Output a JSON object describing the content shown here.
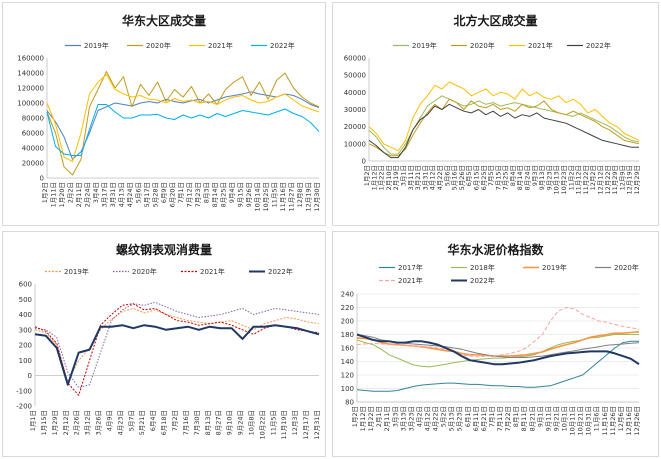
{
  "chart_data": [
    {
      "type": "line",
      "title": "华东大区成交量",
      "ylim": [
        0,
        160000
      ],
      "yticks": [
        0,
        20000,
        40000,
        60000,
        80000,
        100000,
        120000,
        140000,
        160000
      ],
      "x_labels": [
        "1月2日",
        "1月11日",
        "1月20日",
        "2月2日",
        "2月11日",
        "2月24日",
        "3月4日",
        "3月17日",
        "3月31日",
        "4月13日",
        "4月24日",
        "5月6日",
        "5月17日",
        "5月28日",
        "6月9日",
        "6月20日",
        "7月1日",
        "7月12日",
        "7月23日",
        "8月3日",
        "8月14日",
        "8月25日",
        "9月4日",
        "9月15日",
        "9月26日",
        "10月14日",
        "10月25日",
        "11月5日",
        "11月16日",
        "11月27日",
        "12月8日",
        "12月19日",
        "12月30日"
      ],
      "legend_position": "top",
      "grid": false,
      "series": [
        {
          "name": "2019年",
          "color": "#4f81bd",
          "values": [
            90000,
            75000,
            55000,
            25000,
            35000,
            60000,
            90000,
            95000,
            100000,
            98000,
            96000,
            100000,
            102000,
            100000,
            105000,
            102000,
            100000,
            103000,
            105000,
            100000,
            104000,
            108000,
            110000,
            112000,
            115000,
            112000,
            110000,
            108000,
            112000,
            110000,
            105000,
            98000,
            94000
          ]
        },
        {
          "name": "2020年",
          "color": "#c09a1c",
          "values": [
            88000,
            60000,
            15000,
            4000,
            25000,
            95000,
            118000,
            142000,
            120000,
            135000,
            95000,
            125000,
            110000,
            128000,
            102000,
            118000,
            108000,
            122000,
            100000,
            112000,
            98000,
            118000,
            128000,
            135000,
            110000,
            128000,
            105000,
            130000,
            140000,
            120000,
            108000,
            100000,
            95000
          ]
        },
        {
          "name": "2021年",
          "color": "#ffc000",
          "values": [
            100000,
            72000,
            28000,
            22000,
            60000,
            112000,
            128000,
            138000,
            118000,
            112000,
            108000,
            110000,
            105000,
            104000,
            100000,
            106000,
            102000,
            104000,
            100000,
            102000,
            98000,
            104000,
            108000,
            110000,
            104000,
            100000,
            102000,
            108000,
            112000,
            104000,
            96000,
            92000,
            88000
          ]
        },
        {
          "name": "2022年",
          "color": "#00b0f0",
          "values": [
            88000,
            42000,
            32000,
            30000,
            30000,
            65000,
            98000,
            98000,
            88000,
            80000,
            80000,
            84000,
            84000,
            85000,
            80000,
            78000,
            84000,
            80000,
            84000,
            80000,
            86000,
            82000,
            86000,
            90000,
            88000,
            86000,
            84000,
            88000,
            92000,
            86000,
            82000,
            74000,
            62000
          ]
        }
      ]
    },
    {
      "type": "line",
      "title": "北方大区成交量",
      "ylim": [
        0,
        60000
      ],
      "yticks": [
        0,
        10000,
        20000,
        30000,
        40000,
        50000,
        60000
      ],
      "x_labels": [
        "1月2日",
        "1月12日",
        "1月22日",
        "2月10日",
        "2月19日",
        "3月1日",
        "3月11日",
        "3月21日",
        "3月31日",
        "4月12日",
        "4月22日",
        "5月6日",
        "5月16日",
        "5月26日",
        "6月5日",
        "6月15日",
        "6月25日",
        "7月5日",
        "7月15日",
        "7月25日",
        "8月4日",
        "8月14日",
        "8月24日",
        "9月3日",
        "9月13日",
        "9月23日",
        "10月13日",
        "10月23日",
        "11月2日",
        "11月12日",
        "11月22日",
        "12月2日",
        "12月12日",
        "12月22日",
        "11月29日",
        "12月9日",
        "12月19日",
        "12月29日"
      ],
      "legend_position": "top",
      "grid": false,
      "series": [
        {
          "name": "2019年",
          "color": "#9bbb59",
          "values": [
            18000,
            14000,
            8000,
            4000,
            4000,
            10000,
            18000,
            25000,
            32000,
            35000,
            38000,
            36000,
            34000,
            32000,
            33000,
            35000,
            33000,
            34000,
            32000,
            33000,
            34000,
            33000,
            32000,
            31000,
            30000,
            29000,
            28000,
            27000,
            26000,
            28000,
            26000,
            24000,
            22000,
            20000,
            17000,
            14000,
            12000,
            11000
          ]
        },
        {
          "name": "2020年",
          "color": "#c09a1c",
          "values": [
            10000,
            8000,
            5000,
            3000,
            3000,
            7000,
            15000,
            22000,
            28000,
            33000,
            30000,
            36000,
            34000,
            30000,
            35000,
            32000,
            31000,
            33000,
            30000,
            31000,
            29000,
            33000,
            31000,
            32000,
            35000,
            30000,
            28000,
            27000,
            29000,
            27000,
            25000,
            23000,
            20000,
            18000,
            15000,
            12000,
            11000,
            10000
          ]
        },
        {
          "name": "2021年",
          "color": "#ffc000",
          "values": [
            20000,
            16000,
            10000,
            8000,
            6000,
            12000,
            25000,
            33000,
            38000,
            44000,
            42000,
            46000,
            44000,
            42000,
            38000,
            40000,
            42000,
            38000,
            40000,
            39000,
            36000,
            42000,
            38000,
            40000,
            37000,
            36000,
            38000,
            34000,
            36000,
            33000,
            28000,
            30000,
            26000,
            22000,
            20000,
            16000,
            14000,
            12000
          ]
        },
        {
          "name": "2022年",
          "color": "#404040",
          "values": [
            12000,
            9000,
            5000,
            2000,
            2000,
            8000,
            18000,
            24000,
            27000,
            32000,
            30000,
            33000,
            31000,
            29000,
            28000,
            30000,
            27000,
            29000,
            26000,
            28000,
            25000,
            27000,
            26000,
            28000,
            25000,
            24000,
            23000,
            22000,
            20000,
            18000,
            16000,
            14000,
            12000,
            11000,
            10000,
            9000,
            8000,
            8000
          ]
        }
      ]
    },
    {
      "type": "line",
      "title": "螺纹钢表观消费量",
      "ylim": [
        -200,
        600
      ],
      "yticks": [
        -200,
        -100,
        0,
        100,
        200,
        300,
        400,
        500,
        600
      ],
      "x_labels": [
        "1月1日",
        "1月15日",
        "1月29日",
        "2月12日",
        "2月26日",
        "3月12日",
        "3月26日",
        "4月9日",
        "4月23日",
        "5月7日",
        "5月21日",
        "6月4日",
        "6月18日",
        "7月2日",
        "7月16日",
        "7月30日",
        "8月13日",
        "8月27日",
        "9月10日",
        "9月24日",
        "10月8日",
        "10月22日",
        "11月5日",
        "11月19日",
        "12月3日",
        "12月17日",
        "12月31日"
      ],
      "legend_position": "top",
      "grid": false,
      "series": [
        {
          "name": "2019年",
          "color": "#f79646",
          "dash": "2,1.5",
          "values": [
            300,
            280,
            200,
            -40,
            100,
            180,
            300,
            370,
            420,
            440,
            410,
            430,
            400,
            380,
            360,
            350,
            340,
            350,
            360,
            330,
            300,
            340,
            360,
            380,
            370,
            350,
            340
          ]
        },
        {
          "name": "2020年",
          "color": "#8064a2",
          "dash": "1.5,1.5",
          "values": [
            310,
            300,
            250,
            20,
            -80,
            -60,
            150,
            360,
            430,
            470,
            460,
            480,
            450,
            420,
            400,
            380,
            390,
            400,
            420,
            440,
            400,
            420,
            440,
            430,
            420,
            410,
            400
          ]
        },
        {
          "name": "2021年",
          "color": "#c00000",
          "dash": "2,1.5",
          "values": [
            320,
            290,
            210,
            -50,
            -130,
            100,
            330,
            400,
            460,
            470,
            430,
            440,
            400,
            360,
            350,
            330,
            340,
            350,
            330,
            300,
            270,
            310,
            330,
            320,
            300,
            290,
            280
          ]
        },
        {
          "name": "2022年",
          "color": "#1f3864",
          "width": 2,
          "values": [
            270,
            260,
            180,
            -60,
            150,
            170,
            320,
            320,
            330,
            310,
            330,
            320,
            300,
            310,
            320,
            300,
            320,
            310,
            310,
            240,
            320,
            320,
            330,
            320,
            310,
            290,
            270
          ]
        }
      ]
    },
    {
      "type": "line",
      "title": "华东水泥价格指数",
      "ylim": [
        80,
        240
      ],
      "yticks": [
        80,
        100,
        120,
        140,
        160,
        180,
        200,
        220,
        240
      ],
      "x_labels": [
        "1月2日",
        "1月12日",
        "1月22日",
        "2月1日",
        "2月11日",
        "3月3日",
        "3月13日",
        "3月23日",
        "4月2日",
        "4月12日",
        "4月22日",
        "5月2日",
        "5月13日",
        "5月23日",
        "6月1日",
        "6月11日",
        "6月21日",
        "7月1日",
        "7月11日",
        "7月22日",
        "8月1日",
        "8月11日",
        "8月21日",
        "9月1日",
        "9月11日",
        "9月21日",
        "10月1日",
        "10月11日",
        "10月21日",
        "10月31日",
        "11月6日",
        "11月16日",
        "11月26日",
        "12月6日",
        "12月16日",
        "12月26日"
      ],
      "legend_position": "top",
      "grid": true,
      "series": [
        {
          "name": "2017年",
          "color": "#31849b",
          "values": [
            98,
            97,
            96,
            96,
            96,
            97,
            100,
            103,
            105,
            106,
            107,
            108,
            108,
            107,
            106,
            106,
            105,
            104,
            104,
            103,
            103,
            102,
            102,
            103,
            104,
            108,
            112,
            116,
            120,
            130,
            140,
            150,
            160,
            168,
            170,
            170
          ]
        },
        {
          "name": "2018年",
          "color": "#9bbb59",
          "values": [
            172,
            168,
            165,
            158,
            150,
            145,
            140,
            135,
            133,
            132,
            134,
            136,
            138,
            140,
            142,
            143,
            144,
            145,
            145,
            146,
            147,
            148,
            150,
            155,
            160,
            165,
            168,
            170,
            172,
            175,
            176,
            178,
            180,
            180,
            180,
            180
          ]
        },
        {
          "name": "2019年",
          "color": "#f79646",
          "width": 1.6,
          "values": [
            175,
            174,
            172,
            168,
            166,
            165,
            164,
            163,
            162,
            160,
            158,
            156,
            155,
            152,
            150,
            150,
            149,
            148,
            148,
            148,
            149,
            150,
            152,
            154,
            158,
            162,
            165,
            168,
            172,
            176,
            178,
            180,
            182,
            182,
            183,
            184
          ]
        },
        {
          "name": "2020年",
          "color": "#808080",
          "values": [
            180,
            178,
            176,
            172,
            170,
            168,
            167,
            166,
            165,
            164,
            163,
            162,
            160,
            158,
            155,
            152,
            150,
            148,
            147,
            146,
            146,
            146,
            147,
            148,
            150,
            152,
            154,
            156,
            158,
            160,
            162,
            164,
            165,
            166,
            167,
            168
          ]
        },
        {
          "name": "2021年",
          "color": "#f4a6a6",
          "dash": "4,2",
          "values": [
            165,
            166,
            167,
            166,
            165,
            164,
            164,
            163,
            162,
            162,
            160,
            158,
            155,
            150,
            148,
            147,
            148,
            148,
            150,
            152,
            155,
            160,
            170,
            180,
            200,
            215,
            220,
            218,
            210,
            205,
            200,
            198,
            195,
            192,
            190,
            188
          ]
        },
        {
          "name": "2022年",
          "color": "#1f3864",
          "width": 2,
          "values": [
            180,
            176,
            172,
            170,
            170,
            168,
            168,
            170,
            170,
            168,
            165,
            160,
            155,
            148,
            142,
            140,
            138,
            136,
            136,
            137,
            138,
            140,
            142,
            145,
            148,
            150,
            152,
            153,
            154,
            155,
            155,
            155,
            152,
            148,
            144,
            136
          ]
        }
      ]
    }
  ]
}
